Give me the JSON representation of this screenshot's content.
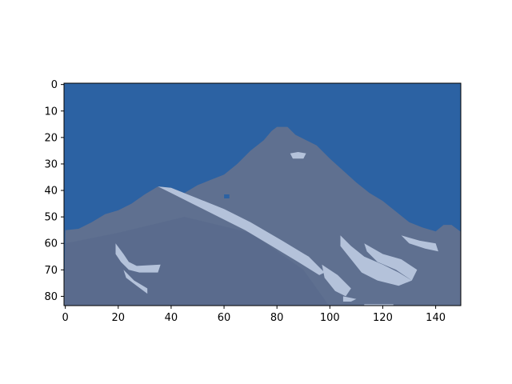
{
  "chart_data": {
    "type": "heatmap",
    "title": "",
    "xlabel": "",
    "ylabel": "",
    "image_shape": {
      "rows": 84,
      "cols": 150
    },
    "xlim": [
      -0.5,
      149.5
    ],
    "ylim": [
      83.5,
      -0.5
    ],
    "y_axis_inverted": true,
    "xticks": [
      0,
      20,
      40,
      60,
      80,
      100,
      120,
      140
    ],
    "yticks": [
      0,
      10,
      20,
      30,
      40,
      50,
      60,
      70,
      80
    ],
    "grid": false,
    "legend": "none",
    "colors": {
      "sky": "#2c62a3",
      "mountain_rock": "#5f7090",
      "mountain_shadow": "#56688a",
      "snow": "#b4c2da",
      "axis": "#000000"
    },
    "skyline": [
      [
        0,
        55
      ],
      [
        5,
        54.5
      ],
      [
        10,
        52
      ],
      [
        15,
        49
      ],
      [
        20,
        47.5
      ],
      [
        25,
        45
      ],
      [
        30,
        41.5
      ],
      [
        35,
        38.5
      ],
      [
        40,
        39
      ],
      [
        45,
        41
      ],
      [
        50,
        38
      ],
      [
        55,
        36
      ],
      [
        60,
        34
      ],
      [
        65,
        30
      ],
      [
        70,
        25
      ],
      [
        75,
        21
      ],
      [
        78,
        17.5
      ],
      [
        80,
        16
      ],
      [
        84,
        16
      ],
      [
        87,
        19
      ],
      [
        90,
        20.5
      ],
      [
        95,
        23
      ],
      [
        100,
        28
      ],
      [
        105,
        32.5
      ],
      [
        110,
        37
      ],
      [
        115,
        41
      ],
      [
        120,
        44
      ],
      [
        125,
        48
      ],
      [
        130,
        52
      ],
      [
        135,
        54
      ],
      [
        140,
        55.5
      ],
      [
        143,
        53
      ],
      [
        146,
        53
      ],
      [
        150,
        56
      ]
    ],
    "snow_patches": [
      {
        "poly": [
          [
            35,
            38.5
          ],
          [
            40,
            39
          ],
          [
            50,
            43
          ],
          [
            60,
            47
          ],
          [
            70,
            52
          ],
          [
            82,
            59
          ],
          [
            92,
            65
          ],
          [
            98,
            71
          ],
          [
            96,
            72
          ],
          [
            88,
            67
          ],
          [
            78,
            61
          ],
          [
            68,
            55
          ],
          [
            58,
            50
          ],
          [
            48,
            45
          ],
          [
            40,
            41
          ]
        ]
      },
      {
        "poly": [
          [
            19,
            60
          ],
          [
            22,
            64
          ],
          [
            24,
            67
          ],
          [
            27,
            68.5
          ],
          [
            36,
            68
          ],
          [
            35,
            71
          ],
          [
            28,
            71
          ],
          [
            24,
            70
          ],
          [
            21,
            67
          ],
          [
            19,
            64
          ]
        ]
      },
      {
        "poly": [
          [
            22,
            70
          ],
          [
            26,
            74
          ],
          [
            31,
            77
          ],
          [
            31,
            79
          ],
          [
            27,
            76
          ],
          [
            23,
            73
          ]
        ]
      },
      {
        "poly": [
          [
            97,
            68
          ],
          [
            103,
            72
          ],
          [
            108,
            77
          ],
          [
            106,
            80
          ],
          [
            102,
            78
          ],
          [
            98,
            73
          ]
        ]
      },
      {
        "poly": [
          [
            104,
            57
          ],
          [
            108,
            61
          ],
          [
            113,
            65
          ],
          [
            120,
            68
          ],
          [
            126,
            71
          ],
          [
            131,
            74
          ],
          [
            126,
            76
          ],
          [
            118,
            74
          ],
          [
            112,
            71
          ],
          [
            108,
            66
          ],
          [
            104,
            61
          ]
        ]
      },
      {
        "poly": [
          [
            113,
            60
          ],
          [
            120,
            64
          ],
          [
            127,
            66
          ],
          [
            133,
            70
          ],
          [
            131,
            74
          ],
          [
            125,
            70
          ],
          [
            118,
            67
          ],
          [
            114,
            63
          ]
        ]
      },
      {
        "poly": [
          [
            127,
            57
          ],
          [
            134,
            59
          ],
          [
            140,
            60
          ],
          [
            141,
            63
          ],
          [
            136,
            62
          ],
          [
            130,
            60
          ]
        ]
      },
      {
        "poly": [
          [
            85,
            26
          ],
          [
            88,
            25.5
          ],
          [
            91,
            26
          ],
          [
            90,
            28
          ],
          [
            86,
            28
          ]
        ]
      },
      {
        "poly": [
          [
            113,
            83
          ],
          [
            124,
            83
          ],
          [
            124,
            84
          ],
          [
            113,
            84
          ]
        ]
      },
      {
        "poly": [
          [
            105,
            80
          ],
          [
            110,
            81
          ],
          [
            108,
            82
          ],
          [
            105,
            82
          ]
        ]
      }
    ],
    "sky_inclusions": [
      {
        "poly": [
          [
            60,
            41.5
          ],
          [
            62,
            41.5
          ],
          [
            62,
            43
          ],
          [
            60,
            43
          ]
        ]
      }
    ]
  }
}
